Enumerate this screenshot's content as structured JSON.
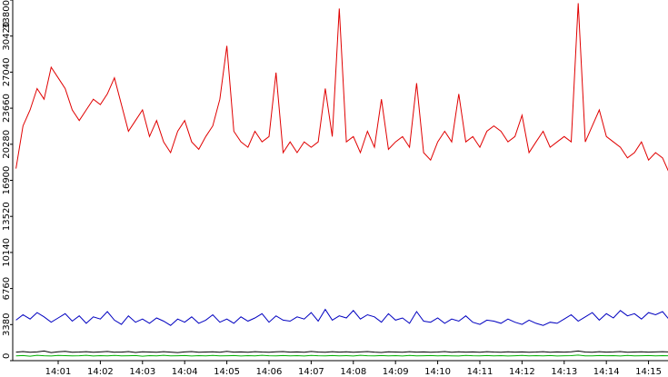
{
  "chart_data": {
    "type": "line",
    "categories": [
      null,
      null,
      null,
      null,
      null,
      null,
      "14:01",
      null,
      null,
      null,
      null,
      null,
      "14:02",
      null,
      null,
      null,
      null,
      null,
      "14:03",
      null,
      null,
      null,
      null,
      null,
      "14:04",
      null,
      null,
      null,
      null,
      null,
      "14:05",
      null,
      null,
      null,
      null,
      null,
      "14:06",
      null,
      null,
      null,
      null,
      null,
      "14:07",
      null,
      null,
      null,
      null,
      null,
      "14:08",
      null,
      null,
      null,
      null,
      null,
      "14:09",
      null,
      null,
      null,
      null,
      null,
      "14:10",
      null,
      null,
      null,
      null,
      null,
      "14:11",
      null,
      null,
      null,
      null,
      null,
      "14:12",
      null,
      null,
      null,
      null,
      null,
      "14:13",
      null,
      null,
      null,
      null,
      null,
      "14:14",
      null,
      null,
      null,
      null,
      null,
      "14:15",
      null,
      null,
      null
    ],
    "series": [
      {
        "color": "#e00000",
        "values": [
          18000,
          22000,
          23500,
          25500,
          24500,
          27500,
          26500,
          25500,
          23500,
          22500,
          23500,
          24500,
          24000,
          25000,
          26500,
          24000,
          21500,
          22500,
          23500,
          21000,
          22500,
          20500,
          19500,
          21500,
          22500,
          20500,
          19800,
          21000,
          22000,
          24500,
          29500,
          21500,
          20500,
          20000,
          21500,
          20500,
          21000,
          27000,
          19500,
          20500,
          19500,
          20500,
          20000,
          20500,
          25500,
          21000,
          33000,
          20500,
          21000,
          19500,
          21500,
          20000,
          24500,
          19800,
          20500,
          21000,
          20000,
          26000,
          19500,
          18800,
          20500,
          21500,
          20500,
          25000,
          20500,
          21000,
          20000,
          21500,
          22000,
          21500,
          20500,
          21000,
          23000,
          19500,
          20500,
          21500,
          20000,
          20500,
          21000,
          20500,
          33500,
          20500,
          22000,
          23500,
          21000,
          20500,
          20000,
          19000,
          19500,
          20500,
          18800,
          19500,
          19000,
          17500
        ]
      },
      {
        "color": "#0000c0",
        "values": [
          3800,
          4300,
          3900,
          4500,
          4100,
          3600,
          4000,
          4400,
          3700,
          4200,
          3500,
          4100,
          3900,
          4600,
          3800,
          3400,
          4200,
          3600,
          3900,
          3500,
          4000,
          3700,
          3300,
          3900,
          3600,
          4100,
          3500,
          3800,
          4300,
          3600,
          3900,
          3500,
          4100,
          3700,
          4000,
          4400,
          3600,
          4200,
          3800,
          3700,
          4100,
          3900,
          4500,
          3700,
          4800,
          3800,
          4200,
          4000,
          4700,
          3900,
          4300,
          4100,
          3600,
          4400,
          3800,
          4000,
          3500,
          4600,
          3700,
          3600,
          4000,
          3500,
          3900,
          3700,
          4200,
          3600,
          3400,
          3800,
          3700,
          3500,
          3900,
          3600,
          3400,
          3800,
          3500,
          3300,
          3600,
          3500,
          3900,
          4300,
          3700,
          4100,
          4500,
          3800,
          4400,
          4000,
          4700,
          4200,
          4400,
          3900,
          4500,
          4300,
          4600,
          3800
        ]
      },
      {
        "color": "#000000",
        "values": [
          800,
          850,
          780,
          820,
          900,
          760,
          830,
          870,
          790,
          810,
          840,
          780,
          820,
          860,
          790,
          800,
          850,
          770,
          830,
          810,
          790,
          840,
          800,
          760,
          820,
          850,
          780,
          810,
          830,
          790,
          870,
          800,
          820,
          780,
          840,
          810,
          790,
          830,
          850,
          800,
          820,
          790,
          860,
          810,
          780,
          840,
          800,
          830,
          790,
          820,
          850,
          800,
          770,
          830,
          810,
          790,
          840,
          800,
          820,
          780,
          810,
          850,
          790,
          830,
          800,
          820,
          780,
          840,
          810,
          790,
          830,
          800,
          820,
          790,
          810,
          840,
          780,
          820,
          800,
          830,
          900,
          810,
          790,
          840,
          800,
          820,
          850,
          790,
          810,
          830,
          800,
          820,
          840,
          810
        ]
      },
      {
        "color": "#00b000",
        "values": [
          450,
          480,
          420,
          500,
          460,
          430,
          490,
          470,
          440,
          460,
          500,
          430,
          470,
          450,
          490,
          440,
          460,
          480,
          420,
          470,
          450,
          500,
          440,
          460,
          480,
          430,
          470,
          450,
          490,
          440,
          460,
          480,
          430,
          470,
          450,
          500,
          460,
          440,
          480,
          450,
          470,
          430,
          490,
          460,
          440,
          480,
          450,
          470,
          430,
          500,
          460,
          440,
          480,
          450,
          470,
          430,
          490,
          450,
          460,
          480,
          440,
          470,
          450,
          430,
          490,
          460,
          440,
          480,
          450,
          470,
          430,
          460,
          490,
          440,
          470,
          450,
          480,
          430,
          460,
          470,
          520,
          450,
          440,
          480,
          460,
          470,
          430,
          490,
          450,
          460,
          480,
          440,
          470,
          450
        ]
      }
    ],
    "ylim": [
      0,
      33800
    ],
    "yticks": [
      0,
      3380,
      6760,
      10140,
      13520,
      16900,
      20280,
      23660,
      27040,
      30420,
      33800
    ]
  }
}
